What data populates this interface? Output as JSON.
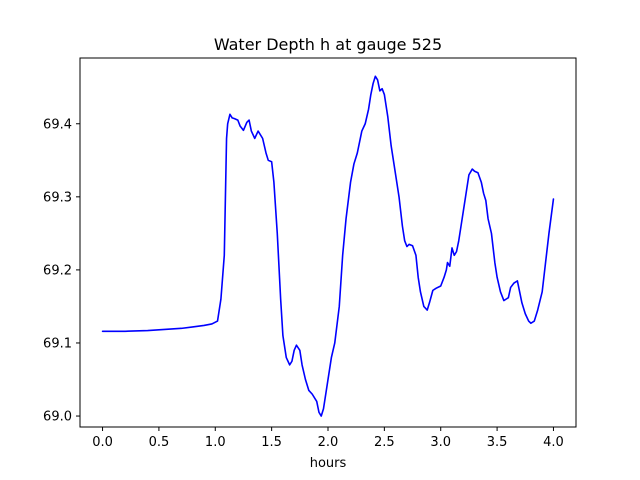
{
  "chart_data": {
    "type": "line",
    "title": "Water Depth h at gauge 525",
    "xlabel": "hours",
    "ylabel": "",
    "xlim": [
      -0.2,
      4.2
    ],
    "ylim": [
      68.985,
      69.49
    ],
    "xticks": [
      0.0,
      0.5,
      1.0,
      1.5,
      2.0,
      2.5,
      3.0,
      3.5,
      4.0
    ],
    "xtick_labels": [
      "0.0",
      "0.5",
      "1.0",
      "1.5",
      "2.0",
      "2.5",
      "3.0",
      "3.5",
      "4.0"
    ],
    "yticks": [
      69.0,
      69.1,
      69.2,
      69.3,
      69.4
    ],
    "ytick_labels": [
      "69.0",
      "69.1",
      "69.2",
      "69.3",
      "69.4"
    ],
    "grid": false,
    "legend": "none",
    "series": [
      {
        "color": "#0000ff",
        "x": [
          0.0,
          0.2,
          0.4,
          0.6,
          0.7,
          0.8,
          0.9,
          0.97,
          1.02,
          1.05,
          1.08,
          1.1,
          1.11,
          1.13,
          1.15,
          1.17,
          1.2,
          1.22,
          1.25,
          1.28,
          1.3,
          1.32,
          1.35,
          1.38,
          1.42,
          1.45,
          1.47,
          1.5,
          1.52,
          1.55,
          1.58,
          1.6,
          1.63,
          1.66,
          1.68,
          1.7,
          1.72,
          1.75,
          1.77,
          1.8,
          1.83,
          1.86,
          1.9,
          1.92,
          1.94,
          1.96,
          1.98,
          2.0,
          2.03,
          2.06,
          2.1,
          2.13,
          2.16,
          2.2,
          2.23,
          2.26,
          2.3,
          2.33,
          2.36,
          2.38,
          2.4,
          2.42,
          2.44,
          2.46,
          2.48,
          2.5,
          2.53,
          2.56,
          2.6,
          2.63,
          2.66,
          2.68,
          2.7,
          2.72,
          2.75,
          2.78,
          2.8,
          2.82,
          2.85,
          2.88,
          2.9,
          2.93,
          2.96,
          3.0,
          3.03,
          3.05,
          3.06,
          3.08,
          3.1,
          3.12,
          3.14,
          3.16,
          3.18,
          3.2,
          3.22,
          3.25,
          3.28,
          3.3,
          3.33,
          3.36,
          3.38,
          3.4,
          3.42,
          3.45,
          3.48,
          3.5,
          3.53,
          3.56,
          3.58,
          3.6,
          3.62,
          3.65,
          3.68,
          3.7,
          3.72,
          3.75,
          3.78,
          3.8,
          3.83,
          3.86,
          3.9,
          3.93,
          3.96,
          4.0
        ],
        "y": [
          69.116,
          69.116,
          69.117,
          69.119,
          69.12,
          69.122,
          69.124,
          69.126,
          69.13,
          69.16,
          69.22,
          69.38,
          69.4,
          69.413,
          69.408,
          69.407,
          69.405,
          69.397,
          69.391,
          69.402,
          69.405,
          69.39,
          69.38,
          69.39,
          69.38,
          69.36,
          69.35,
          69.348,
          69.32,
          69.25,
          69.16,
          69.11,
          69.08,
          69.07,
          69.075,
          69.09,
          69.097,
          69.09,
          69.07,
          69.05,
          69.035,
          69.03,
          69.02,
          69.005,
          69.0,
          69.01,
          69.03,
          69.05,
          69.08,
          69.1,
          69.15,
          69.22,
          69.27,
          69.32,
          69.345,
          69.36,
          69.39,
          69.4,
          69.42,
          69.44,
          69.455,
          69.465,
          69.46,
          69.445,
          69.448,
          69.44,
          69.41,
          69.37,
          69.33,
          69.3,
          69.26,
          69.24,
          69.232,
          69.235,
          69.233,
          69.22,
          69.19,
          69.17,
          69.15,
          69.145,
          69.155,
          69.172,
          69.175,
          69.178,
          69.19,
          69.2,
          69.21,
          69.205,
          69.23,
          69.22,
          69.225,
          69.24,
          69.26,
          69.28,
          69.3,
          69.33,
          69.338,
          69.335,
          69.333,
          69.32,
          69.305,
          69.295,
          69.27,
          69.25,
          69.21,
          69.19,
          69.17,
          69.158,
          69.16,
          69.162,
          69.176,
          69.182,
          69.185,
          69.17,
          69.155,
          69.14,
          69.13,
          69.127,
          69.13,
          69.145,
          69.17,
          69.21,
          69.25,
          69.297
        ]
      }
    ]
  }
}
